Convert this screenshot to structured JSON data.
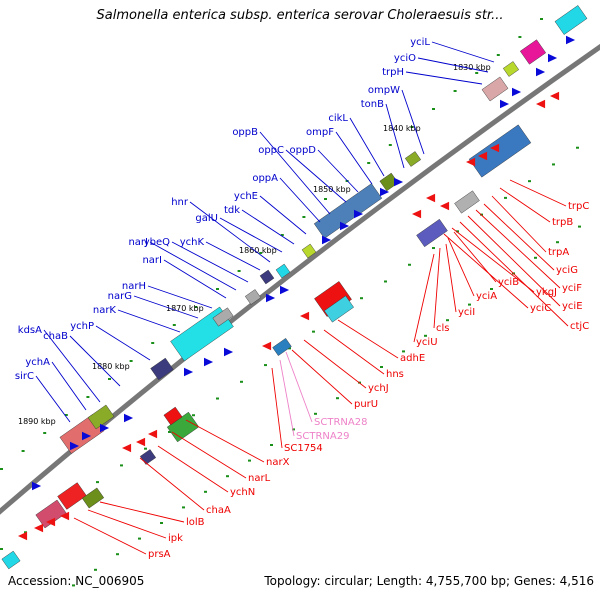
{
  "title": "Salmonella enterica subsp. enterica serovar Choleraesuis str...",
  "footer": {
    "accession": "Accession: NC_006905",
    "summary": "Topology: circular; Length: 4,755,700 bp; Genes: 4,516"
  },
  "colors": {
    "forward_label": "#0000cc",
    "reverse_label": "#ee0000",
    "rna_label": "#ee82c8",
    "backbone": "#777777",
    "dots": "#1a8f1a"
  },
  "ticks": [
    "1830 kbp",
    "1840 kbp",
    "1850 kbp",
    "1860 kbp",
    "1870 kbp",
    "1880 kbp",
    "1890 kbp"
  ],
  "forward_genes": [
    "yciL",
    "yciO",
    "trpH",
    "ompW",
    "tonB",
    "cikL",
    "ompF",
    "oppD",
    "oppC",
    "oppB",
    "oppA",
    "ychE",
    "tdk",
    "galU",
    "hnr",
    "ychK",
    "narI",
    "ybeQ",
    "narJ",
    "narH",
    "narG",
    "narK",
    "ychP",
    "chaB",
    "kdsA",
    "ychA",
    "sirC"
  ],
  "reverse_genes": [
    "trpC",
    "trpB",
    "trpA",
    "yciG",
    "yciF",
    "yciE",
    "ctjC",
    "ykgJ",
    "yciC",
    "yciB",
    "yciA",
    "yciI",
    "cls",
    "yciU",
    "adhE",
    "hns",
    "ychJ",
    "purU",
    "SC1754",
    "narX",
    "narL",
    "ychN",
    "chaA",
    "lolB",
    "ipk",
    "prsA"
  ],
  "rna_genes": [
    "SCTRNA28",
    "SCTRNA29"
  ]
}
